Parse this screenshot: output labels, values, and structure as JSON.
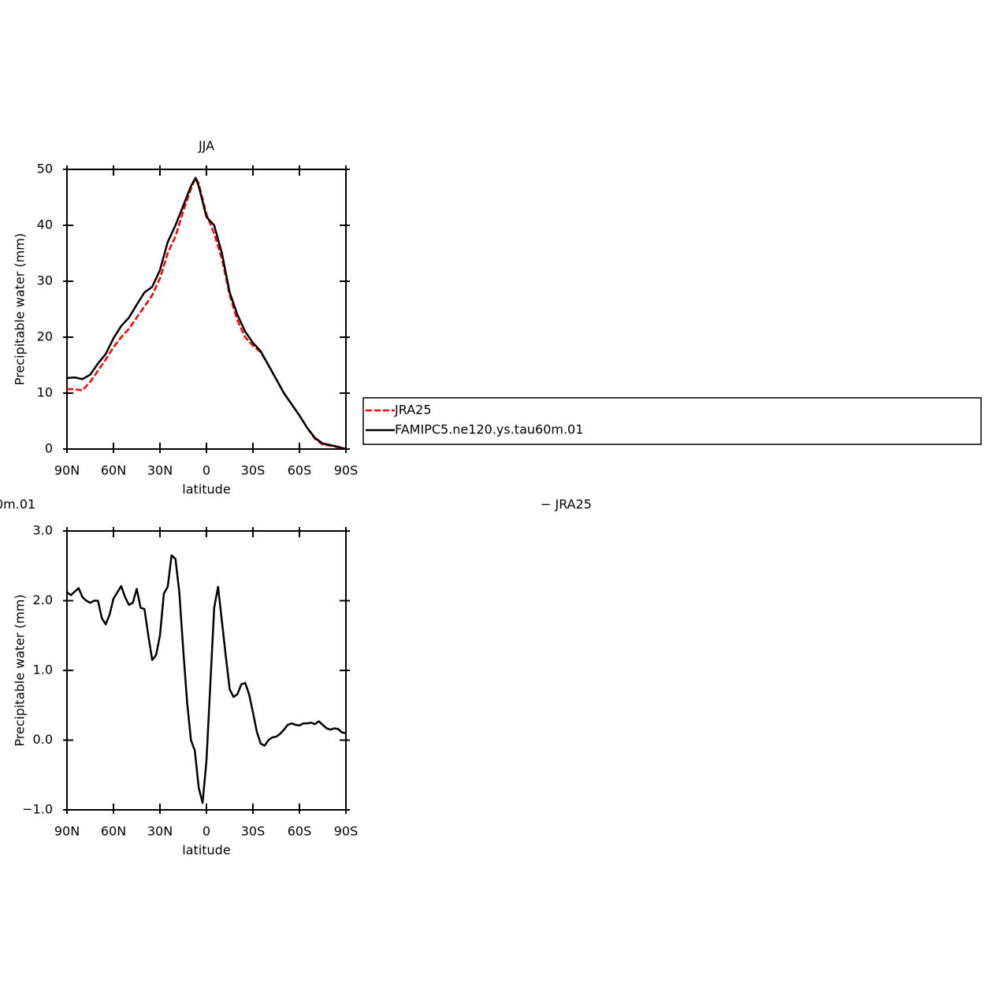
{
  "chart_data": [
    {
      "type": "line",
      "title": "JJA",
      "xlabel": "latitude",
      "ylabel": "Precipitable water (mm)",
      "x": [
        90,
        85,
        80,
        75,
        70,
        65,
        60,
        55,
        50,
        45,
        40,
        35,
        30,
        25,
        20,
        15,
        10,
        7,
        5,
        0,
        -5,
        -10,
        -15,
        -20,
        -25,
        -30,
        -35,
        -40,
        -45,
        -50,
        -55,
        -60,
        -65,
        -70,
        -75,
        -80,
        -85,
        -90
      ],
      "series": [
        {
          "name": "JRA25",
          "color": "#ff0000",
          "style": "dashed",
          "values": [
            10.7,
            10.7,
            10.5,
            12.0,
            14.0,
            16.0,
            18.2,
            20.0,
            21.5,
            23.5,
            25.5,
            27.5,
            30.5,
            35.0,
            38.0,
            42.5,
            46.5,
            48.5,
            47.5,
            42.0,
            38.5,
            34.0,
            27.5,
            23.0,
            20.0,
            18.5,
            17.3,
            15.0,
            12.5,
            10.0,
            8.0,
            6.0,
            3.8,
            1.8,
            0.8,
            0.6,
            0.3,
            0.0
          ]
        },
        {
          "name": "FAMIPC5.ne120.ys.tau60m.01",
          "color": "#000000",
          "style": "solid",
          "values": [
            12.7,
            12.8,
            12.5,
            13.3,
            15.3,
            17.0,
            19.8,
            22.0,
            23.5,
            25.8,
            28.0,
            29.0,
            32.0,
            37.0,
            40.0,
            43.5,
            47.0,
            48.5,
            47.0,
            41.5,
            40.0,
            35.0,
            28.0,
            24.0,
            21.0,
            19.0,
            17.5,
            15.0,
            12.5,
            10.0,
            8.0,
            6.0,
            3.8,
            2.0,
            1.0,
            0.7,
            0.4,
            0.0
          ]
        }
      ],
      "xlim": [
        90,
        -90
      ],
      "xticks": [
        {
          "value": 90,
          "label": "90N"
        },
        {
          "value": 60,
          "label": "60N"
        },
        {
          "value": 30,
          "label": "30N"
        },
        0,
        {
          "value": -30,
          "label": "30S"
        },
        {
          "value": -60,
          "label": "60S"
        },
        {
          "value": -90,
          "label": "90S"
        }
      ],
      "ylim": [
        0,
        50
      ],
      "yticks": [
        0,
        10,
        20,
        30,
        40,
        50
      ],
      "grid": false,
      "legend": "right"
    },
    {
      "type": "line",
      "title_parts": [
        "0m.01",
        "− JRA25"
      ],
      "xlabel": "latitude",
      "ylabel": "Precipitable water (mm)",
      "x": [
        90,
        87.5,
        85,
        82.5,
        80,
        77.5,
        75,
        72.5,
        70,
        67.5,
        65,
        62.5,
        60,
        57.5,
        55,
        52.5,
        50,
        47.5,
        45,
        42.5,
        40,
        37.5,
        35,
        32.5,
        30,
        27.5,
        25,
        22.5,
        20,
        17.5,
        15,
        12.5,
        10,
        7.5,
        5,
        2.5,
        0,
        -2.5,
        -5,
        -7.5,
        -10,
        -12.5,
        -15,
        -17.5,
        -20,
        -22.5,
        -25,
        -27.5,
        -30,
        -32.5,
        -35,
        -37.5,
        -40,
        -42.5,
        -45,
        -47.5,
        -50,
        -52.5,
        -55,
        -57.5,
        -60,
        -62.5,
        -65,
        -67.5,
        -70,
        -72.5,
        -75,
        -77.5,
        -80,
        -82.5,
        -85,
        -87.5,
        -90
      ],
      "series": [
        {
          "color": "#000000",
          "style": "solid",
          "values": [
            2.12,
            2.08,
            2.13,
            2.18,
            2.05,
            2.0,
            1.97,
            2.0,
            2.0,
            1.75,
            1.66,
            1.8,
            2.03,
            2.12,
            2.21,
            2.05,
            1.94,
            1.97,
            2.17,
            1.9,
            1.88,
            1.5,
            1.15,
            1.22,
            1.5,
            2.1,
            2.2,
            2.65,
            2.6,
            2.12,
            1.3,
            0.55,
            0.0,
            -0.15,
            -0.68,
            -0.9,
            -0.3,
            0.8,
            1.9,
            2.2,
            1.7,
            1.2,
            0.73,
            0.62,
            0.66,
            0.8,
            0.82,
            0.66,
            0.4,
            0.12,
            -0.05,
            -0.08,
            0.0,
            0.04,
            0.05,
            0.09,
            0.15,
            0.22,
            0.24,
            0.22,
            0.21,
            0.24,
            0.24,
            0.25,
            0.23,
            0.27,
            0.22,
            0.17,
            0.15,
            0.17,
            0.16,
            0.11,
            0.1
          ]
        }
      ],
      "xlim": [
        90,
        -90
      ],
      "xticks": [
        {
          "value": 90,
          "label": "90N"
        },
        {
          "value": 60,
          "label": "60N"
        },
        {
          "value": 30,
          "label": "30N"
        },
        0,
        {
          "value": -30,
          "label": "30S"
        },
        {
          "value": -60,
          "label": "60S"
        },
        {
          "value": -90,
          "label": "90S"
        }
      ],
      "ylim": [
        -1,
        3
      ],
      "yticks": [
        {
          "value": -1,
          "label": "−1.0"
        },
        {
          "value": 0,
          "label": "0.0"
        },
        {
          "value": 1,
          "label": "1.0"
        },
        {
          "value": 2,
          "label": "2.0"
        },
        {
          "value": 3,
          "label": "3.0"
        }
      ],
      "grid": false
    }
  ]
}
